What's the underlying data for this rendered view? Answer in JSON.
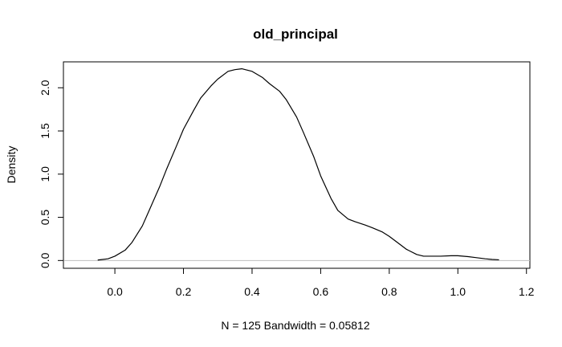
{
  "chart_data": {
    "type": "line",
    "title": "old_principal",
    "xlabel": "N = 125   Bandwidth = 0.05812",
    "ylabel": "Density",
    "xlim": [
      -0.15,
      1.21
    ],
    "ylim": [
      -0.09,
      2.3
    ],
    "x_ticks": [
      "0.0",
      "0.2",
      "0.4",
      "0.6",
      "0.8",
      "1.0",
      "1.2"
    ],
    "x_tick_values": [
      0.0,
      0.2,
      0.4,
      0.6,
      0.8,
      1.0,
      1.2
    ],
    "y_ticks": [
      "0.0",
      "0.5",
      "1.0",
      "1.5",
      "2.0"
    ],
    "y_tick_values": [
      0.0,
      0.5,
      1.0,
      1.5,
      2.0
    ],
    "baseline": 0,
    "grid": false,
    "series": [
      {
        "x": [
          -0.05,
          -0.02,
          0.0,
          0.03,
          0.05,
          0.08,
          0.1,
          0.13,
          0.15,
          0.18,
          0.2,
          0.23,
          0.25,
          0.28,
          0.3,
          0.33,
          0.35,
          0.37,
          0.4,
          0.43,
          0.45,
          0.48,
          0.5,
          0.53,
          0.55,
          0.58,
          0.6,
          0.63,
          0.65,
          0.68,
          0.7,
          0.73,
          0.75,
          0.78,
          0.8,
          0.83,
          0.85,
          0.88,
          0.9,
          0.93,
          0.95,
          0.98,
          1.0,
          1.03,
          1.05,
          1.08,
          1.1,
          1.12
        ],
        "y": [
          0.005,
          0.02,
          0.05,
          0.12,
          0.21,
          0.4,
          0.58,
          0.85,
          1.05,
          1.33,
          1.52,
          1.74,
          1.88,
          2.02,
          2.1,
          2.19,
          2.21,
          2.22,
          2.19,
          2.12,
          2.05,
          1.96,
          1.86,
          1.66,
          1.48,
          1.2,
          0.98,
          0.72,
          0.58,
          0.48,
          0.45,
          0.41,
          0.38,
          0.33,
          0.28,
          0.19,
          0.13,
          0.07,
          0.05,
          0.05,
          0.05,
          0.055,
          0.055,
          0.045,
          0.035,
          0.02,
          0.012,
          0.008
        ]
      }
    ]
  }
}
